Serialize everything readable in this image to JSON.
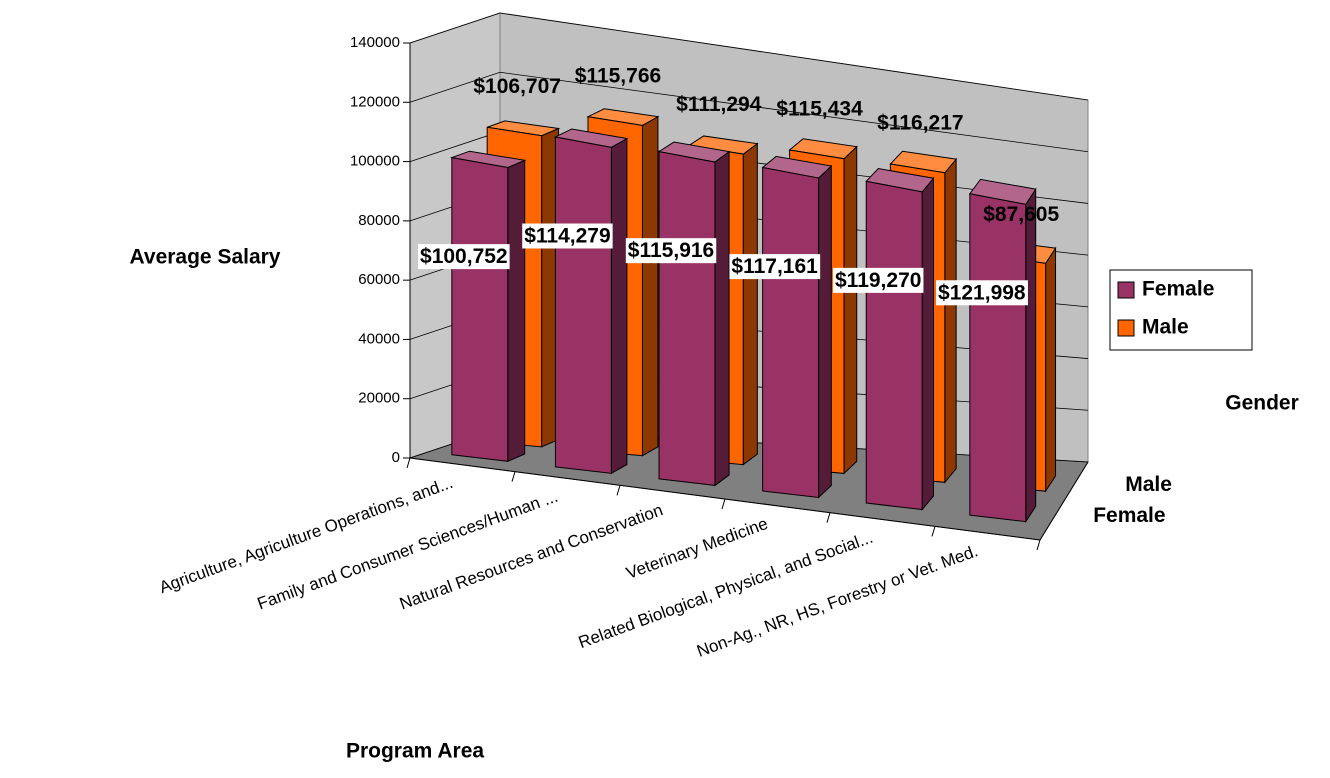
{
  "chart_data": {
    "type": "bar3d",
    "x_label": "Program Area",
    "y_label": "Average Salary",
    "z_label": "Gender",
    "categories": [
      "Agriculture, Agriculture Operations, and...",
      "Family and Consumer Sciences/Human ...",
      "Natural Resources and Conservation",
      "Veterinary Medicine",
      "Related Biological, Physical, and Social...",
      "Non-Ag., NR, HS, Forestry or Vet. Med."
    ],
    "series": [
      {
        "name": "Female",
        "color": "#993366",
        "values": [
          100752,
          114279,
          115916,
          117161,
          119270,
          121998
        ],
        "value_labels": [
          "$100,752",
          "$114,279",
          "$115,916",
          "$117,161",
          "$119,270",
          "$121,998"
        ]
      },
      {
        "name": "Male",
        "color": "#ff6600",
        "values": [
          106707,
          115766,
          111294,
          115434,
          116217,
          87605
        ],
        "value_labels": [
          "$106,707",
          "$115,766",
          "$111,294",
          "$115,434",
          "$116,217",
          "$87,605"
        ]
      }
    ],
    "ylim": [
      0,
      140000
    ],
    "yticks": [
      0,
      20000,
      40000,
      60000,
      80000,
      100000,
      120000,
      140000
    ],
    "grid": true,
    "legend": "right"
  }
}
